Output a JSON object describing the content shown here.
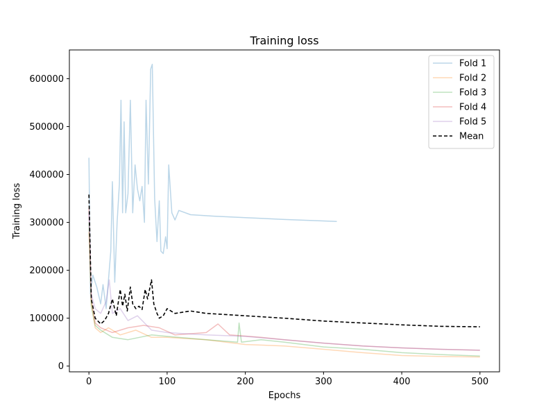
{
  "chart_data": {
    "type": "line",
    "title": "Training loss",
    "xlabel": "Epochs",
    "ylabel": "Training loss",
    "xlim": [
      -25,
      525
    ],
    "ylim": [
      -12000,
      660000
    ],
    "xticks": [
      0,
      100,
      200,
      300,
      400,
      500
    ],
    "yticks": [
      0,
      100000,
      200000,
      300000,
      400000,
      500000,
      600000
    ],
    "grid": false,
    "legend_position": "top-right",
    "series": [
      {
        "name": "Fold 1",
        "color": "#1f77b4",
        "alpha": 0.3,
        "style": "solid",
        "points": [
          [
            0,
            435000
          ],
          [
            2,
            150000
          ],
          [
            5,
            190000
          ],
          [
            10,
            165000
          ],
          [
            15,
            130000
          ],
          [
            18,
            170000
          ],
          [
            22,
            120000
          ],
          [
            28,
            240000
          ],
          [
            30,
            385000
          ],
          [
            33,
            175000
          ],
          [
            36,
            300000
          ],
          [
            39,
            380000
          ],
          [
            41,
            555000
          ],
          [
            43,
            320000
          ],
          [
            45,
            510000
          ],
          [
            47,
            320000
          ],
          [
            50,
            360000
          ],
          [
            53,
            555000
          ],
          [
            56,
            320000
          ],
          [
            59,
            420000
          ],
          [
            62,
            370000
          ],
          [
            65,
            345000
          ],
          [
            68,
            375000
          ],
          [
            71,
            300000
          ],
          [
            73,
            555000
          ],
          [
            76,
            380000
          ],
          [
            79,
            620000
          ],
          [
            81,
            630000
          ],
          [
            84,
            350000
          ],
          [
            87,
            260000
          ],
          [
            90,
            345000
          ],
          [
            92,
            240000
          ],
          [
            95,
            235000
          ],
          [
            98,
            270000
          ],
          [
            100,
            245000
          ],
          [
            102,
            420000
          ],
          [
            106,
            320000
          ],
          [
            110,
            305000
          ],
          [
            115,
            325000
          ],
          [
            130,
            316000
          ],
          [
            160,
            313000
          ],
          [
            200,
            310000
          ],
          [
            250,
            306000
          ],
          [
            300,
            303000
          ],
          [
            317,
            302000
          ]
        ]
      },
      {
        "name": "Fold 2",
        "color": "#ff7f0e",
        "alpha": 0.3,
        "style": "solid",
        "points": [
          [
            0,
            280000
          ],
          [
            3,
            130000
          ],
          [
            8,
            80000
          ],
          [
            15,
            70000
          ],
          [
            25,
            80000
          ],
          [
            40,
            65000
          ],
          [
            60,
            75000
          ],
          [
            80,
            60000
          ],
          [
            100,
            60000
          ],
          [
            150,
            55000
          ],
          [
            200,
            45000
          ],
          [
            250,
            42000
          ],
          [
            300,
            35000
          ],
          [
            350,
            28000
          ],
          [
            400,
            22000
          ],
          [
            450,
            20000
          ],
          [
            500,
            19000
          ]
        ]
      },
      {
        "name": "Fold 3",
        "color": "#2ca02c",
        "alpha": 0.3,
        "style": "solid",
        "points": [
          [
            0,
            300000
          ],
          [
            3,
            125000
          ],
          [
            8,
            85000
          ],
          [
            15,
            75000
          ],
          [
            30,
            60000
          ],
          [
            50,
            55000
          ],
          [
            80,
            65000
          ],
          [
            100,
            62000
          ],
          [
            150,
            55000
          ],
          [
            190,
            50000
          ],
          [
            192,
            90000
          ],
          [
            195,
            50000
          ],
          [
            220,
            55000
          ],
          [
            250,
            50000
          ],
          [
            300,
            40000
          ],
          [
            350,
            35000
          ],
          [
            400,
            28000
          ],
          [
            450,
            24000
          ],
          [
            500,
            21000
          ]
        ]
      },
      {
        "name": "Fold 4",
        "color": "#d62728",
        "alpha": 0.3,
        "style": "solid",
        "points": [
          [
            0,
            330000
          ],
          [
            3,
            140000
          ],
          [
            8,
            90000
          ],
          [
            15,
            80000
          ],
          [
            30,
            70000
          ],
          [
            50,
            80000
          ],
          [
            70,
            85000
          ],
          [
            90,
            80000
          ],
          [
            110,
            65000
          ],
          [
            150,
            70000
          ],
          [
            165,
            88000
          ],
          [
            180,
            65000
          ],
          [
            220,
            60000
          ],
          [
            250,
            55000
          ],
          [
            300,
            48000
          ],
          [
            350,
            42000
          ],
          [
            400,
            38000
          ],
          [
            450,
            35000
          ],
          [
            500,
            33000
          ]
        ]
      },
      {
        "name": "Fold 5",
        "color": "#9467bd",
        "alpha": 0.3,
        "style": "solid",
        "points": [
          [
            0,
            320000
          ],
          [
            3,
            150000
          ],
          [
            8,
            120000
          ],
          [
            15,
            110000
          ],
          [
            22,
            135000
          ],
          [
            26,
            180000
          ],
          [
            30,
            110000
          ],
          [
            40,
            120000
          ],
          [
            50,
            95000
          ],
          [
            62,
            105000
          ],
          [
            80,
            75000
          ],
          [
            100,
            70000
          ],
          [
            150,
            65000
          ],
          [
            200,
            62000
          ],
          [
            250,
            55000
          ],
          [
            300,
            48000
          ],
          [
            350,
            42000
          ],
          [
            400,
            38000
          ],
          [
            450,
            35000
          ],
          [
            500,
            33000
          ]
        ]
      },
      {
        "name": "Mean",
        "color": "#000000",
        "alpha": 1,
        "style": "dashed",
        "points": [
          [
            0,
            358000
          ],
          [
            3,
            140000
          ],
          [
            8,
            100000
          ],
          [
            15,
            88000
          ],
          [
            20,
            95000
          ],
          [
            25,
            110000
          ],
          [
            30,
            140000
          ],
          [
            35,
            105000
          ],
          [
            40,
            160000
          ],
          [
            43,
            125000
          ],
          [
            46,
            150000
          ],
          [
            49,
            115000
          ],
          [
            53,
            165000
          ],
          [
            56,
            130000
          ],
          [
            60,
            120000
          ],
          [
            64,
            125000
          ],
          [
            68,
            118000
          ],
          [
            72,
            160000
          ],
          [
            75,
            140000
          ],
          [
            80,
            180000
          ],
          [
            83,
            130000
          ],
          [
            87,
            110000
          ],
          [
            90,
            100000
          ],
          [
            95,
            105000
          ],
          [
            100,
            120000
          ],
          [
            110,
            110000
          ],
          [
            130,
            115000
          ],
          [
            150,
            110000
          ],
          [
            170,
            108000
          ],
          [
            200,
            105000
          ],
          [
            250,
            100000
          ],
          [
            300,
            94000
          ],
          [
            350,
            90000
          ],
          [
            400,
            86000
          ],
          [
            450,
            83000
          ],
          [
            500,
            82000
          ]
        ]
      }
    ]
  }
}
